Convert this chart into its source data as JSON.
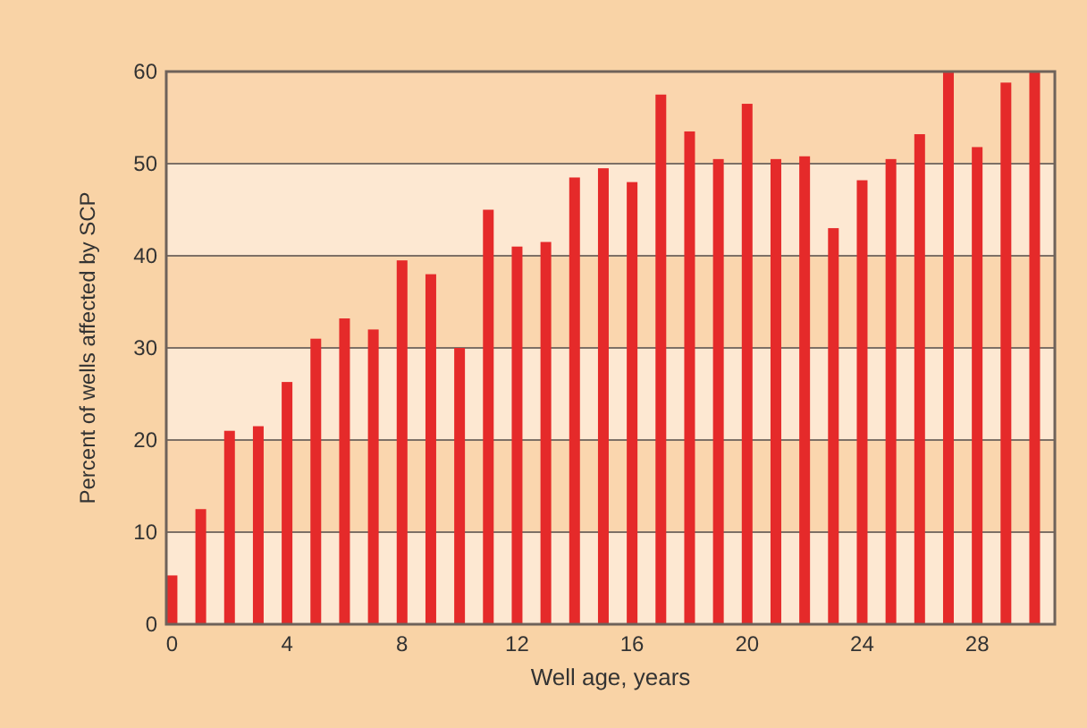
{
  "chart_data": {
    "type": "bar",
    "xlabel": "Well age, years",
    "ylabel": "Percent of wells affected by SCP",
    "x": [
      0,
      1,
      2,
      3,
      4,
      5,
      6,
      7,
      8,
      9,
      10,
      11,
      12,
      13,
      14,
      15,
      16,
      17,
      18,
      19,
      20,
      21,
      22,
      23,
      24,
      25,
      26,
      27,
      28,
      29,
      30
    ],
    "values": [
      5.3,
      12.5,
      21,
      21.5,
      26.3,
      31,
      33.2,
      32,
      39.5,
      38,
      30,
      45,
      41,
      41.5,
      48.5,
      49.5,
      48,
      57.5,
      53.5,
      50.5,
      56.5,
      50.5,
      50.8,
      43,
      48.2,
      50.5,
      53.2,
      60,
      51.8,
      58.8,
      60
    ],
    "color": "#e52a2a",
    "xlim": [
      -0.2,
      30.7
    ],
    "xticks": [
      0,
      4,
      8,
      12,
      16,
      20,
      24,
      28
    ],
    "ylim": [
      0,
      60
    ],
    "yticks": [
      0,
      10,
      20,
      30,
      40,
      50,
      60
    ],
    "grid": "y",
    "bands": [
      {
        "axis": "y",
        "from": 0,
        "to": 10,
        "color": "#fde8d2"
      },
      {
        "axis": "y",
        "from": 10,
        "to": 20,
        "color": "#fad6ae"
      },
      {
        "axis": "y",
        "from": 20,
        "to": 30,
        "color": "#fde8d2"
      },
      {
        "axis": "y",
        "from": 30,
        "to": 40,
        "color": "#fad6ae"
      },
      {
        "axis": "y",
        "from": 40,
        "to": 50,
        "color": "#fde8d2"
      },
      {
        "axis": "y",
        "from": 50,
        "to": 60,
        "color": "#fad6ae"
      }
    ]
  }
}
